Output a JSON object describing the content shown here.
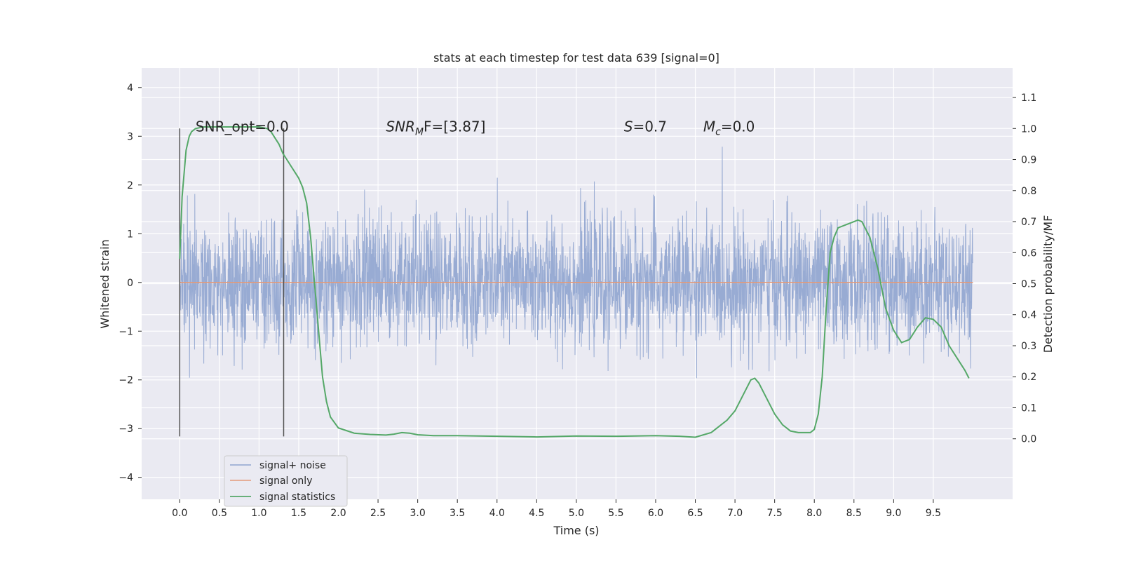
{
  "chart_data": {
    "type": "line",
    "title": "stats at each timestep for test data 639 [signal=0]",
    "xlabel": "Time (s)",
    "ylabel": "Whitened strain",
    "y2label": "Detection probability/MF",
    "xlim": [
      -0.48,
      10.5
    ],
    "ylim": [
      -4.45,
      4.4
    ],
    "y2lim": [
      -0.195,
      1.195
    ],
    "xticks": [
      0.0,
      0.5,
      1.0,
      1.5,
      2.0,
      2.5,
      3.0,
      3.5,
      4.0,
      4.5,
      5.0,
      5.5,
      6.0,
      6.5,
      7.0,
      7.5,
      8.0,
      8.5,
      9.0,
      9.5
    ],
    "xtick_labels": [
      "0.0",
      "0.5",
      "1.0",
      "1.5",
      "2.0",
      "2.5",
      "3.0",
      "3.5",
      "4.0",
      "4.5",
      "5.0",
      "5.5",
      "6.0",
      "6.5",
      "7.0",
      "7.5",
      "8.0",
      "8.5",
      "9.0",
      "9.5"
    ],
    "yticks": [
      -4,
      -3,
      -2,
      -1,
      0,
      1,
      2,
      3,
      4
    ],
    "ytick_labels": [
      "−4",
      "−3",
      "−2",
      "−1",
      "0",
      "1",
      "2",
      "3",
      "4"
    ],
    "y2ticks": [
      0.0,
      0.1,
      0.2,
      0.3,
      0.4,
      0.5,
      0.6,
      0.7,
      0.8,
      0.9,
      1.0,
      1.1
    ],
    "y2tick_labels": [
      "0.0",
      "0.1",
      "0.2",
      "0.3",
      "0.4",
      "0.5",
      "0.6",
      "0.7",
      "0.8",
      "0.9",
      "1.0",
      "1.1"
    ],
    "grid": true,
    "legend_position": "lower-left",
    "annotations": [
      {
        "id": "snr-opt",
        "text": "SNR_opt=0.0",
        "x": 0.2,
        "y": 3.1
      },
      {
        "id": "snr-mf",
        "text_main": "SNR",
        "text_sub": "M",
        "text_tail": "F=[3.87]",
        "x": 2.6,
        "y": 3.1
      },
      {
        "id": "s-value",
        "text_main": "S",
        "text_tail": "=0.7",
        "x": 5.6,
        "y": 3.1
      },
      {
        "id": "mc-value",
        "text_main": "M",
        "text_sub": "c",
        "text_tail": "=0.0",
        "x": 6.6,
        "y": 3.1
      }
    ],
    "vlines": [
      {
        "x": 0.0,
        "ymin": -3.16,
        "ymax": 3.16
      },
      {
        "x": 1.31,
        "ymin": -3.16,
        "ymax": 3.16
      }
    ],
    "series": [
      {
        "name": "signal+ noise",
        "axis": "left",
        "color": "#8fa4cf",
        "kind": "noise",
        "x_range": [
          0.0,
          10.0
        ],
        "std": 0.65,
        "seed": 639
      },
      {
        "name": "signal only",
        "axis": "left",
        "color": "#e39a7a",
        "x": [
          0.0,
          10.0
        ],
        "y": [
          0.0,
          0.0
        ]
      },
      {
        "name": "signal statistics",
        "axis": "right",
        "color": "#55a868",
        "x": [
          0.0,
          0.03,
          0.08,
          0.12,
          0.15,
          0.2,
          0.3,
          0.5,
          0.8,
          1.0,
          1.1,
          1.15,
          1.2,
          1.25,
          1.3,
          1.35,
          1.4,
          1.45,
          1.5,
          1.55,
          1.6,
          1.65,
          1.7,
          1.75,
          1.8,
          1.85,
          1.9,
          2.0,
          2.2,
          2.4,
          2.6,
          2.7,
          2.8,
          2.9,
          3.0,
          3.2,
          3.5,
          4.0,
          4.5,
          5.0,
          5.5,
          6.0,
          6.3,
          6.5,
          6.7,
          6.9,
          7.0,
          7.1,
          7.2,
          7.25,
          7.3,
          7.4,
          7.5,
          7.6,
          7.7,
          7.8,
          7.9,
          7.95,
          8.0,
          8.05,
          8.1,
          8.15,
          8.2,
          8.25,
          8.3,
          8.4,
          8.5,
          8.55,
          8.6,
          8.7,
          8.8,
          8.9,
          9.0,
          9.1,
          9.2,
          9.3,
          9.4,
          9.5,
          9.6,
          9.7,
          9.8,
          9.9,
          9.95
        ],
        "y": [
          0.58,
          0.78,
          0.93,
          0.975,
          0.99,
          1.0,
          1.005,
          1.005,
          1.005,
          1.005,
          1.0,
          0.99,
          0.97,
          0.95,
          0.92,
          0.9,
          0.88,
          0.86,
          0.84,
          0.81,
          0.76,
          0.65,
          0.5,
          0.35,
          0.2,
          0.12,
          0.07,
          0.035,
          0.018,
          0.014,
          0.012,
          0.015,
          0.02,
          0.018,
          0.013,
          0.01,
          0.01,
          0.008,
          0.006,
          0.009,
          0.008,
          0.01,
          0.008,
          0.005,
          0.02,
          0.06,
          0.09,
          0.14,
          0.19,
          0.195,
          0.18,
          0.13,
          0.08,
          0.045,
          0.025,
          0.02,
          0.02,
          0.02,
          0.03,
          0.08,
          0.2,
          0.42,
          0.6,
          0.65,
          0.68,
          0.69,
          0.7,
          0.705,
          0.7,
          0.65,
          0.55,
          0.42,
          0.35,
          0.31,
          0.32,
          0.36,
          0.39,
          0.385,
          0.36,
          0.3,
          0.26,
          0.22,
          0.195
        ]
      }
    ]
  }
}
